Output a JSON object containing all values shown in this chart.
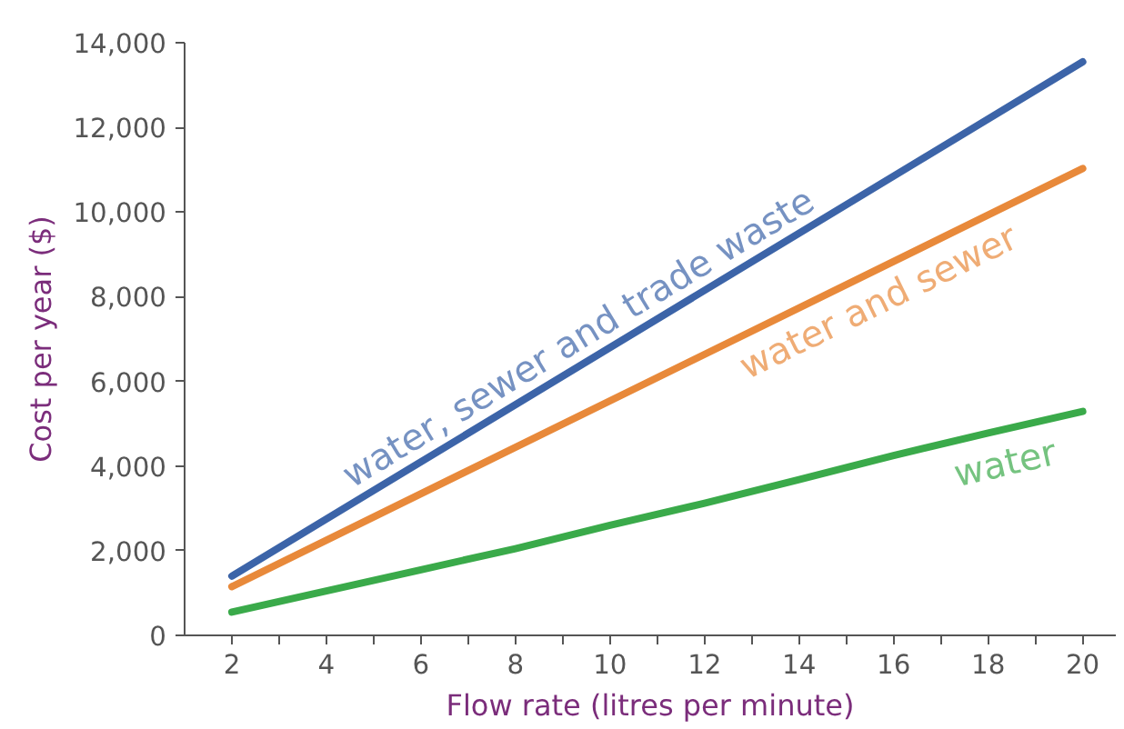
{
  "chart_data": {
    "type": "line",
    "xlabel": "Flow rate (litres per minute)",
    "ylabel": "Cost per year ($)",
    "xlim": [
      1,
      20.7
    ],
    "ylim": [
      0,
      14000
    ],
    "xticks": [
      2,
      4,
      6,
      8,
      10,
      12,
      14,
      16,
      18,
      20
    ],
    "yticks": [
      {
        "value": 0,
        "label": "0"
      },
      {
        "value": 2000,
        "label": "2,000"
      },
      {
        "value": 4000,
        "label": "4,000"
      },
      {
        "value": 6000,
        "label": "6,000"
      },
      {
        "value": 8000,
        "label": "8,000"
      },
      {
        "value": 10000,
        "label": "10,000"
      },
      {
        "value": 12000,
        "label": "12,000"
      },
      {
        "value": 14000,
        "label": "14,000"
      }
    ],
    "grid": false,
    "legend": false,
    "series": [
      {
        "name": "water, sewer and trade waste",
        "color": "#3c64a8",
        "x": [
          2,
          20
        ],
        "values": [
          1400,
          13550
        ]
      },
      {
        "name": "water and sewer",
        "color": "#e8893a",
        "x": [
          2,
          20
        ],
        "values": [
          1150,
          11030
        ]
      },
      {
        "name": "water",
        "color": "#3aaa4a",
        "x": [
          2,
          4,
          6,
          8,
          10,
          12,
          14,
          16,
          18,
          20
        ],
        "values": [
          550,
          1050,
          1550,
          2050,
          2600,
          3120,
          3680,
          4250,
          4780,
          5290
        ]
      }
    ]
  }
}
